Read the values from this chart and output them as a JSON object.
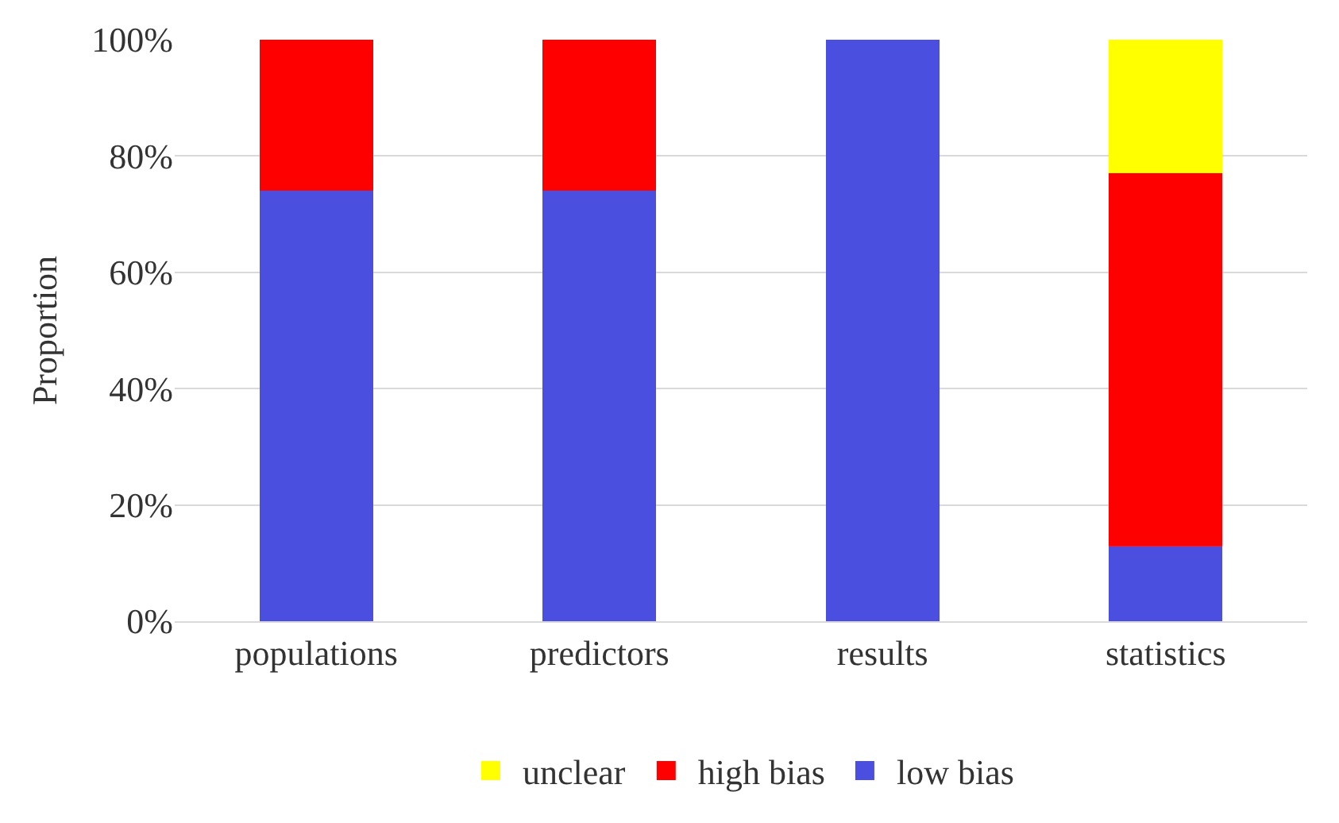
{
  "chart_data": {
    "type": "bar",
    "stacked": true,
    "ylabel": "Proportion",
    "categories": [
      "populations",
      "predictors",
      "results",
      "statistics"
    ],
    "series": [
      {
        "name": "low bias",
        "color": "#4b4fe0",
        "values": [
          74,
          74,
          100,
          13
        ]
      },
      {
        "name": "high bias",
        "color": "#ff0000",
        "values": [
          26,
          26,
          0,
          64
        ]
      },
      {
        "name": "unclear",
        "color": "#ffff00",
        "values": [
          0,
          0,
          0,
          23
        ]
      }
    ],
    "ylim": [
      0,
      100
    ],
    "yticks": [
      {
        "value": 0,
        "label": "0%"
      },
      {
        "value": 20,
        "label": "20%"
      },
      {
        "value": 40,
        "label": "40%"
      },
      {
        "value": 60,
        "label": "60%"
      },
      {
        "value": 80,
        "label": "80%"
      },
      {
        "value": 100,
        "label": "100%"
      }
    ],
    "grid": "y",
    "legend": "bottom"
  }
}
